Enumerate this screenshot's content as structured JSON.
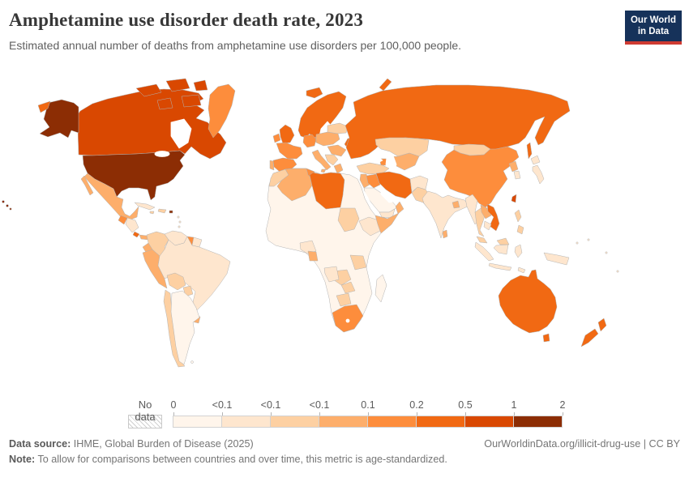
{
  "header": {
    "title": "Amphetamine use disorder death rate, 2023",
    "subtitle": "Estimated annual number of deaths from amphetamine use disorders per 100,000 people."
  },
  "logo": {
    "line1": "Our World",
    "line2": "in Data",
    "bg": "#16325a",
    "accent": "#cf3b32"
  },
  "legend": {
    "no_data_label": "No data",
    "tick_labels": [
      "0",
      "<0.1",
      "<0.1",
      "<0.1",
      "0.1",
      "0.2",
      "0.5",
      "1",
      "2"
    ],
    "colors": [
      "#fff5eb",
      "#fee6ce",
      "#fdd0a2",
      "#fdae6b",
      "#fd8d3c",
      "#f16913",
      "#d94801",
      "#8c2d04"
    ]
  },
  "footer": {
    "source_label": "Data source:",
    "source_text": " IHME, Global Burden of Disease (2025)",
    "rights_text": "OurWorldinData.org/illicit-drug-use | CC BY",
    "note_label": "Note:",
    "note_text": " To allow for comparisons between countries and over time, this metric is age-standardized."
  },
  "chart_data": {
    "type": "choropleth_map",
    "title": "Amphetamine use disorder death rate, 2023",
    "unit": "deaths per 100,000 people",
    "year": "2023",
    "bin_edges": [
      "0",
      "<0.1",
      "<0.1",
      "<0.1",
      "0.1",
      "0.2",
      "0.5",
      "1",
      "2"
    ],
    "bin_colors": [
      "#fff5eb",
      "#fee6ce",
      "#fdd0a2",
      "#fdae6b",
      "#fd8d3c",
      "#f16913",
      "#d94801",
      "#8c2d04"
    ],
    "no_data_pattern": "gray-hatch",
    "fills": {
      "usa": "#8c2d04",
      "alaska": "#8c2d04",
      "hawaii": "#8c2d04",
      "puerto_rico": "#8c2d04",
      "canada": "#d94801",
      "arctic_islands": "#d94801",
      "taiwan": "#d94801",
      "greenland": "#fd8d3c",
      "guatemala": "#fd8d3c",
      "guyana": "#fd8d3c",
      "ireland": "#fd8d3c",
      "denmark": "#fd8d3c",
      "france": "#fd8d3c",
      "spain": "#fd8d3c",
      "germany": "#fd8d3c",
      "tunisia": "#fd8d3c",
      "caucasus": "#fd8d3c",
      "iraq": "#fd8d3c",
      "china": "#fd8d3c",
      "south_africa": "#fd8d3c",
      "russia": "#f16913",
      "ukraine": "#f16913",
      "iceland": "#f16913",
      "uk": "#f16913",
      "scandinavia": "#f16913",
      "libya": "#f16913",
      "iran": "#f16913",
      "vietnam": "#f16913",
      "australia": "#f16913",
      "new_zealand": "#f16913",
      "chukotka": "#f16913",
      "costa_rica": "#f16913",
      "mexico": "#fdae6b",
      "panama": "#fdae6b",
      "ecuador": "#fdae6b",
      "peru": "#fdae6b",
      "uruguay": "#fdae6b",
      "portugal": "#fdae6b",
      "central_europe": "#fdae6b",
      "romania_hungary": "#fdae6b",
      "italy": "#fdae6b",
      "greece": "#fdae6b",
      "central_asia": "#fdae6b",
      "levant": "#fdae6b",
      "oman": "#fdae6b",
      "sri_lanka": "#fdae6b",
      "bangladesh": "#fdae6b",
      "north_korea": "#fdae6b",
      "laos": "#fdae6b",
      "algeria": "#fdae6b",
      "somalia": "#fdae6b",
      "gabon": "#fdae6b",
      "hispaniola": "#fdd0a2",
      "jamaica": "#fdd0a2",
      "colombia": "#fdd0a2",
      "bolivia": "#fdd0a2",
      "paraguay": "#fdd0a2",
      "chile": "#fdd0a2",
      "baltics_belarus": "#fdd0a2",
      "balkans": "#fdd0a2",
      "kazakhstan": "#fdd0a2",
      "mongolia": "#fdd0a2",
      "turkey": "#fdd0a2",
      "pakistan": "#fdd0a2",
      "thailand": "#fdd0a2",
      "malaysia": "#fdd0a2",
      "philippines": "#fdd0a2",
      "morocco": "#fdd0a2",
      "sudan": "#fdd0a2",
      "tanzania": "#fdd0a2",
      "zambia": "#fdd0a2",
      "zimbabwe": "#fdd0a2",
      "botswana": "#fdd0a2",
      "cuba": "#fee6ce",
      "honduras_nicaragua": "#fee6ce",
      "antilles": "#fee6ce",
      "venezuela": "#fee6ce",
      "suriname": "#fee6ce",
      "brazil": "#fee6ce",
      "south_korea": "#fee6ce",
      "japan": "#fee6ce",
      "afghanistan": "#fee6ce",
      "india": "#fee6ce",
      "yemen": "#fee6ce",
      "myanmar": "#fee6ce",
      "cambodia": "#fee6ce",
      "indonesia": "#fee6ce",
      "papua_new_guinea": "#fee6ce",
      "pacific_islands": "#fee6ce",
      "nigeria": "#fee6ce",
      "ethiopia": "#fee6ce",
      "angola": "#fee6ce",
      "argentina": "#fff5eb",
      "falklands": "#fff5eb",
      "saudi_arabia": "#fff5eb",
      "africa_base": "#fff5eb",
      "madagascar": "#fff5eb"
    }
  }
}
